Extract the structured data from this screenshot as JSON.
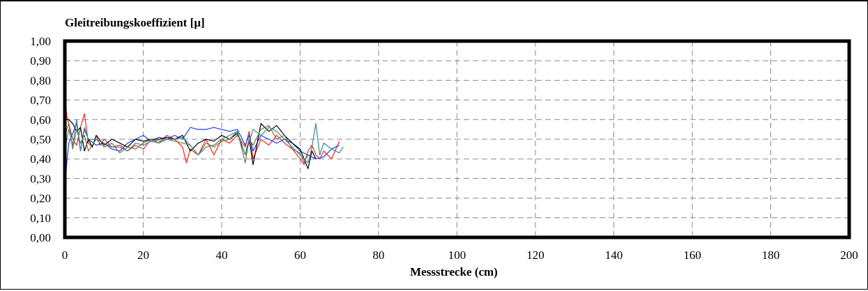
{
  "chart_data": {
    "type": "line",
    "title": "Gleitreibungskoeffizient [µ]",
    "xlabel": "Messstrecke (cm)",
    "ylabel": "",
    "xlim": [
      0,
      200
    ],
    "ylim": [
      0,
      1
    ],
    "x_ticks": [
      "0",
      "20",
      "40",
      "60",
      "80",
      "100",
      "120",
      "140",
      "160",
      "180",
      "200"
    ],
    "y_ticks": [
      "0,00",
      "0,10",
      "0,20",
      "0,30",
      "0,40",
      "0,50",
      "0,60",
      "0,70",
      "0,80",
      "0,90",
      "1,00"
    ],
    "grid": true,
    "grid_style": "dashed",
    "series": [
      {
        "color": "#ff2020",
        "x": [
          0,
          0.5,
          1,
          2,
          3,
          4,
          5,
          6,
          7,
          8,
          9,
          10,
          12,
          14,
          16,
          18,
          20,
          22,
          24,
          26,
          28,
          30,
          31,
          32,
          34,
          36,
          38,
          40,
          42,
          44,
          46,
          47,
          48,
          50,
          52,
          54,
          56,
          58,
          60,
          61,
          62,
          63,
          64,
          65,
          66,
          68,
          70
        ],
        "y": [
          0.74,
          0.62,
          0.58,
          0.5,
          0.47,
          0.56,
          0.63,
          0.48,
          0.46,
          0.52,
          0.47,
          0.5,
          0.46,
          0.47,
          0.44,
          0.47,
          0.45,
          0.5,
          0.48,
          0.52,
          0.5,
          0.46,
          0.38,
          0.45,
          0.42,
          0.5,
          0.42,
          0.5,
          0.48,
          0.52,
          0.46,
          0.54,
          0.4,
          0.5,
          0.47,
          0.52,
          0.48,
          0.45,
          0.4,
          0.37,
          0.44,
          0.47,
          0.42,
          0.4,
          0.44,
          0.4,
          0.49
        ]
      },
      {
        "color": "#1a3cff",
        "x": [
          0,
          0.5,
          1,
          2,
          3,
          4,
          5,
          6,
          8,
          10,
          12,
          14,
          16,
          18,
          20,
          22,
          24,
          26,
          28,
          30,
          32,
          34,
          36,
          38,
          40,
          42,
          44,
          46,
          47,
          48,
          50,
          52,
          54,
          56,
          58,
          60,
          62,
          64,
          66,
          68,
          70
        ],
        "y": [
          0.22,
          0.38,
          0.48,
          0.53,
          0.58,
          0.44,
          0.55,
          0.5,
          0.47,
          0.48,
          0.45,
          0.44,
          0.48,
          0.5,
          0.52,
          0.49,
          0.51,
          0.5,
          0.52,
          0.5,
          0.56,
          0.55,
          0.55,
          0.56,
          0.55,
          0.54,
          0.55,
          0.47,
          0.52,
          0.44,
          0.52,
          0.5,
          0.48,
          0.5,
          0.48,
          0.44,
          0.42,
          0.4,
          0.41,
          0.45,
          0.47
        ]
      },
      {
        "color": "#000000",
        "x": [
          0,
          0.5,
          1,
          2,
          3,
          4,
          5,
          6,
          7,
          8,
          10,
          12,
          14,
          16,
          18,
          20,
          22,
          24,
          26,
          28,
          30,
          32,
          34,
          36,
          38,
          40,
          42,
          44,
          46,
          47,
          48,
          50,
          52,
          54,
          56,
          58,
          60,
          61,
          62,
          63,
          64
        ],
        "y": [
          0.62,
          0.6,
          0.6,
          0.58,
          0.54,
          0.56,
          0.44,
          0.5,
          0.46,
          0.52,
          0.47,
          0.5,
          0.48,
          0.46,
          0.5,
          0.49,
          0.5,
          0.5,
          0.51,
          0.5,
          0.52,
          0.44,
          0.48,
          0.5,
          0.49,
          0.52,
          0.5,
          0.53,
          0.42,
          0.5,
          0.37,
          0.58,
          0.54,
          0.57,
          0.52,
          0.48,
          0.45,
          0.4,
          0.35,
          0.44,
          0.4
        ]
      },
      {
        "color": "#6b7a3a",
        "x": [
          0,
          0.5,
          1,
          2,
          3,
          4,
          5,
          6,
          8,
          10,
          12,
          14,
          16,
          18,
          20,
          22,
          24,
          26,
          28,
          30,
          32,
          34,
          36,
          38,
          40,
          42,
          44,
          46,
          47,
          48,
          50,
          52,
          54,
          56,
          58,
          60,
          61,
          62
        ],
        "y": [
          0.5,
          0.55,
          0.58,
          0.45,
          0.55,
          0.48,
          0.52,
          0.44,
          0.5,
          0.46,
          0.48,
          0.43,
          0.46,
          0.45,
          0.48,
          0.5,
          0.49,
          0.5,
          0.49,
          0.48,
          0.47,
          0.42,
          0.48,
          0.46,
          0.49,
          0.5,
          0.54,
          0.38,
          0.5,
          0.47,
          0.55,
          0.57,
          0.5,
          0.52,
          0.45,
          0.43,
          0.38,
          0.42
        ]
      },
      {
        "color": "#3a8a8a",
        "x": [
          0,
          0.5,
          1,
          2,
          3,
          4,
          5,
          6,
          8,
          10,
          12,
          14,
          16,
          18,
          20,
          22,
          24,
          26,
          28,
          30,
          32,
          34,
          36,
          38,
          40,
          42,
          44,
          46,
          48,
          50,
          52,
          54,
          56,
          58,
          60,
          62,
          63,
          64,
          65,
          66,
          68,
          70,
          71
        ],
        "y": [
          0.42,
          0.5,
          0.55,
          0.47,
          0.6,
          0.44,
          0.56,
          0.5,
          0.5,
          0.48,
          0.46,
          0.46,
          0.44,
          0.48,
          0.47,
          0.49,
          0.48,
          0.5,
          0.5,
          0.51,
          0.47,
          0.42,
          0.46,
          0.47,
          0.5,
          0.52,
          0.54,
          0.42,
          0.55,
          0.52,
          0.56,
          0.54,
          0.5,
          0.46,
          0.42,
          0.38,
          0.46,
          0.58,
          0.42,
          0.48,
          0.45,
          0.43,
          0.46
        ]
      }
    ]
  }
}
